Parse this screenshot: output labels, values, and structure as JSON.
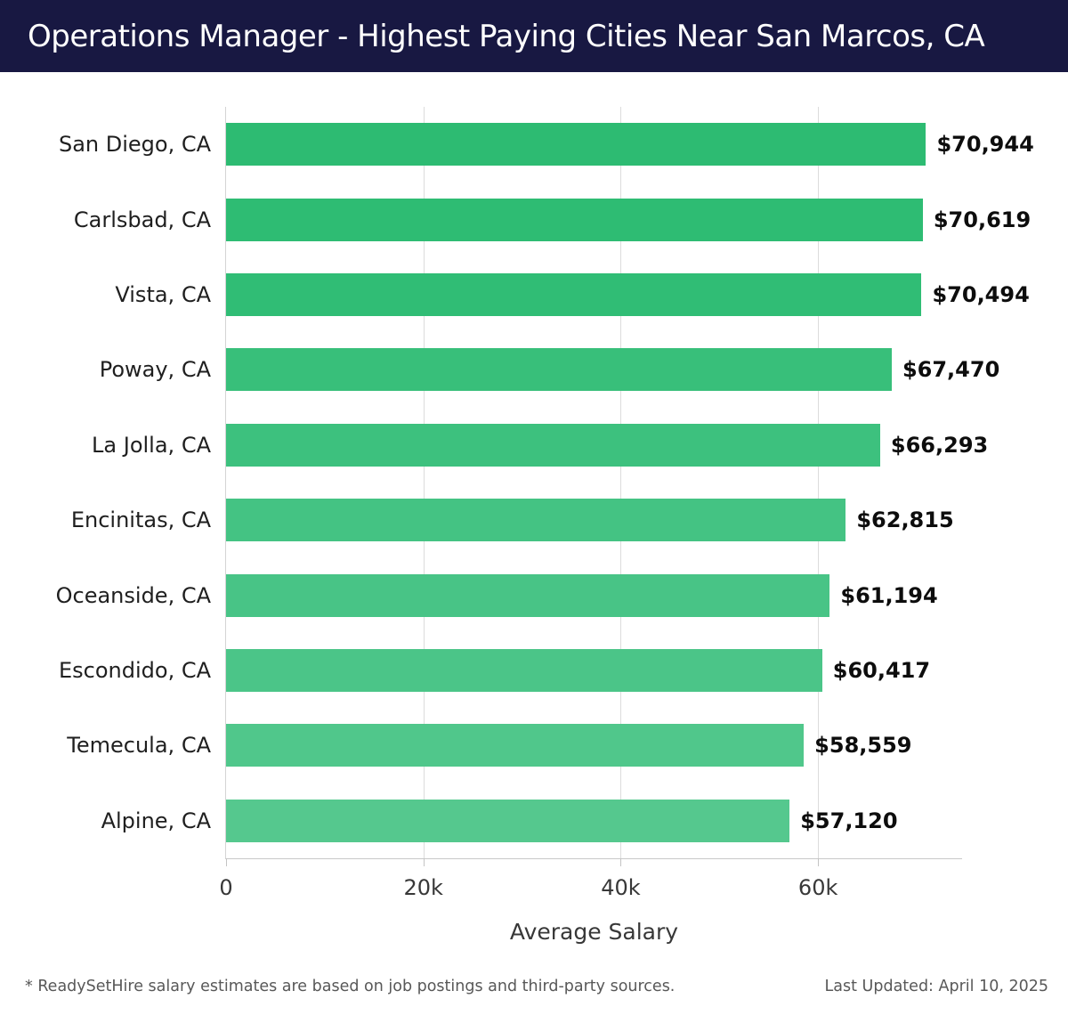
{
  "header": {
    "title": "Operations Manager - Highest Paying Cities Near San Marcos, CA",
    "bg_color": "#181842",
    "text_color": "#ffffff"
  },
  "chart_data": {
    "type": "bar",
    "orientation": "horizontal",
    "title": "Operations Manager - Highest Paying Cities Near San Marcos, CA",
    "categories": [
      "San Diego, CA",
      "Carlsbad, CA",
      "Vista, CA",
      "Poway, CA",
      "La Jolla, CA",
      "Encinitas, CA",
      "Oceanside, CA",
      "Escondido, CA",
      "Temecula, CA",
      "Alpine, CA"
    ],
    "values": [
      70944,
      70619,
      70494,
      67470,
      66293,
      62815,
      61194,
      60417,
      58559,
      57120
    ],
    "value_labels": [
      "$70,944",
      "$70,619",
      "$70,494",
      "$67,470",
      "$66,293",
      "$62,815",
      "$61,194",
      "$60,417",
      "$58,559",
      "$57,120"
    ],
    "bar_colors": [
      "#2dbb72",
      "#2ebc73",
      "#30bd75",
      "#38bf7a",
      "#3dc17e",
      "#44c383",
      "#48c486",
      "#4bc588",
      "#50c78b",
      "#55c88e"
    ],
    "xlabel": "Average Salary",
    "x_ticks": [
      {
        "value": 0,
        "label": "0"
      },
      {
        "value": 20000,
        "label": "20k"
      },
      {
        "value": 40000,
        "label": "40k"
      },
      {
        "value": 60000,
        "label": "60k"
      }
    ],
    "xlim": [
      0,
      74600
    ],
    "grid": true,
    "legend": false
  },
  "footer": {
    "disclaimer": "* ReadySetHire salary estimates are based on job postings and third-party sources.",
    "last_updated": "Last Updated: April 10, 2025"
  }
}
